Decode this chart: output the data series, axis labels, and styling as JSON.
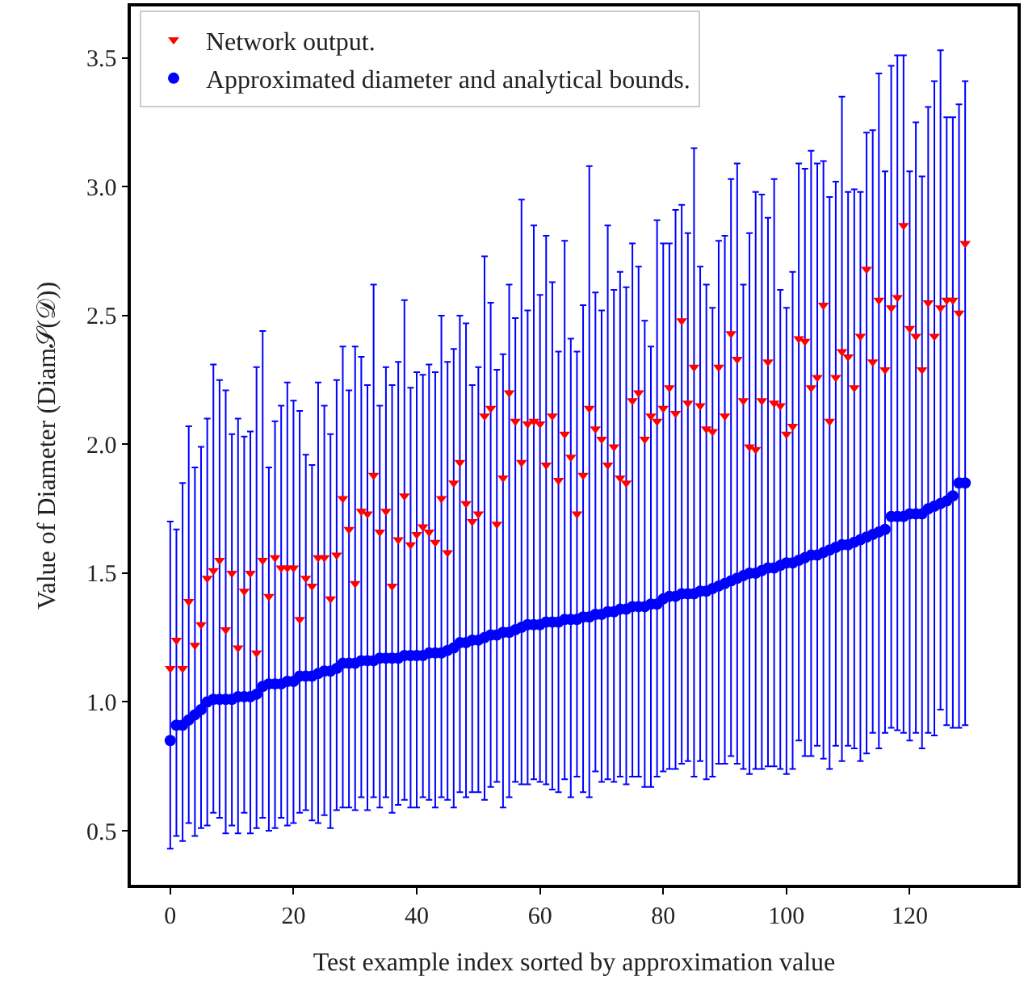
{
  "chart_data": {
    "type": "scatter",
    "xlabel": "Test example index sorted by approximation value",
    "ylabel": "Value of Diameter (Diam𝒮(𝒟))",
    "x": [
      0,
      1,
      2,
      3,
      4,
      5,
      6,
      7,
      8,
      9,
      10,
      11,
      12,
      13,
      14,
      15,
      16,
      17,
      18,
      19,
      20,
      21,
      22,
      23,
      24,
      25,
      26,
      27,
      28,
      29,
      30,
      31,
      32,
      33,
      34,
      35,
      36,
      37,
      38,
      39,
      40,
      41,
      42,
      43,
      44,
      45,
      46,
      47,
      48,
      49,
      50,
      51,
      52,
      53,
      54,
      55,
      56,
      57,
      58,
      59,
      60,
      61,
      62,
      63,
      64,
      65,
      66,
      67,
      68,
      69,
      70,
      71,
      72,
      73,
      74,
      75,
      76,
      77,
      78,
      79,
      80,
      81,
      82,
      83,
      84,
      85,
      86,
      87,
      88,
      89,
      90,
      91,
      92,
      93,
      94,
      95,
      96,
      97,
      98,
      99,
      100,
      101,
      102,
      103,
      104,
      105,
      106,
      107,
      108,
      109,
      110,
      111,
      112,
      113,
      114,
      115,
      116,
      117,
      118,
      119,
      120,
      121,
      122,
      123,
      124,
      125,
      126,
      127,
      128,
      129
    ],
    "series": [
      {
        "name": "Network output.",
        "color": "#ff0000",
        "marker": "triangle",
        "values": [
          1.13,
          1.24,
          1.13,
          1.39,
          1.22,
          1.3,
          1.48,
          1.51,
          1.55,
          1.28,
          1.5,
          1.21,
          1.43,
          1.5,
          1.19,
          1.55,
          1.41,
          1.56,
          1.52,
          1.52,
          1.52,
          1.32,
          1.48,
          1.45,
          1.56,
          1.56,
          1.4,
          1.57,
          1.79,
          1.67,
          1.46,
          1.74,
          1.73,
          1.88,
          1.66,
          1.74,
          1.45,
          1.63,
          1.8,
          1.61,
          1.65,
          1.68,
          1.66,
          1.62,
          1.79,
          1.58,
          1.85,
          1.93,
          1.77,
          1.7,
          1.73,
          2.11,
          2.14,
          1.69,
          1.87,
          2.2,
          2.09,
          1.93,
          2.08,
          2.09,
          2.08,
          1.92,
          2.11,
          1.86,
          2.04,
          1.95,
          1.73,
          1.88,
          2.14,
          2.06,
          2.02,
          1.92,
          1.99,
          1.87,
          1.85,
          2.17,
          2.2,
          2.02,
          2.11,
          2.09,
          2.14,
          2.22,
          2.12,
          2.48,
          2.16,
          2.3,
          2.15,
          2.06,
          2.05,
          2.3,
          2.11,
          2.43,
          2.33,
          2.17,
          1.99,
          1.98,
          2.17,
          2.32,
          2.16,
          2.15,
          2.04,
          2.07,
          2.41,
          2.4,
          2.22,
          2.26,
          2.54,
          2.09,
          2.26,
          2.36,
          2.34,
          2.22,
          2.42,
          2.68,
          2.32,
          2.56,
          2.29,
          2.53,
          2.57,
          2.85,
          2.45,
          2.42,
          2.29,
          2.55,
          2.42,
          2.53,
          2.56,
          2.56,
          2.51,
          2.78
        ]
      },
      {
        "name": "Approximated diameter and analytical bounds.",
        "color": "#0000ff",
        "marker": "circle",
        "values": [
          0.85,
          0.91,
          0.91,
          0.93,
          0.95,
          0.97,
          1.0,
          1.01,
          1.01,
          1.01,
          1.01,
          1.02,
          1.02,
          1.02,
          1.03,
          1.06,
          1.07,
          1.07,
          1.07,
          1.08,
          1.08,
          1.1,
          1.1,
          1.1,
          1.11,
          1.12,
          1.12,
          1.13,
          1.15,
          1.15,
          1.15,
          1.16,
          1.16,
          1.16,
          1.17,
          1.17,
          1.17,
          1.17,
          1.18,
          1.18,
          1.18,
          1.18,
          1.19,
          1.19,
          1.19,
          1.2,
          1.21,
          1.23,
          1.23,
          1.24,
          1.24,
          1.25,
          1.26,
          1.26,
          1.27,
          1.27,
          1.28,
          1.29,
          1.3,
          1.3,
          1.3,
          1.31,
          1.31,
          1.31,
          1.32,
          1.32,
          1.32,
          1.33,
          1.33,
          1.34,
          1.34,
          1.35,
          1.35,
          1.36,
          1.36,
          1.37,
          1.37,
          1.37,
          1.38,
          1.38,
          1.4,
          1.41,
          1.41,
          1.42,
          1.42,
          1.42,
          1.43,
          1.43,
          1.44,
          1.45,
          1.46,
          1.47,
          1.48,
          1.49,
          1.5,
          1.5,
          1.51,
          1.52,
          1.52,
          1.53,
          1.54,
          1.54,
          1.55,
          1.56,
          1.57,
          1.57,
          1.58,
          1.59,
          1.6,
          1.61,
          1.61,
          1.62,
          1.63,
          1.64,
          1.65,
          1.66,
          1.67,
          1.72,
          1.72,
          1.72,
          1.73,
          1.73,
          1.73,
          1.75,
          1.76,
          1.77,
          1.78,
          1.8,
          1.85,
          1.85
        ],
        "errors": [
          [
            0.43,
            1.7
          ],
          [
            0.48,
            1.67
          ],
          [
            0.46,
            1.85
          ],
          [
            0.53,
            2.07
          ],
          [
            0.48,
            1.91
          ],
          [
            0.51,
            1.99
          ],
          [
            0.52,
            2.1
          ],
          [
            0.57,
            2.31
          ],
          [
            0.55,
            2.25
          ],
          [
            0.49,
            2.21
          ],
          [
            0.52,
            2.04
          ],
          [
            0.49,
            2.1
          ],
          [
            0.57,
            2.03
          ],
          [
            0.49,
            2.05
          ],
          [
            0.51,
            2.3
          ],
          [
            0.55,
            2.44
          ],
          [
            0.5,
            1.91
          ],
          [
            0.51,
            2.09
          ],
          [
            0.55,
            2.15
          ],
          [
            0.52,
            2.24
          ],
          [
            0.53,
            2.17
          ],
          [
            0.57,
            2.13
          ],
          [
            0.58,
            1.96
          ],
          [
            0.54,
            1.92
          ],
          [
            0.53,
            2.24
          ],
          [
            0.56,
            2.15
          ],
          [
            0.51,
            2.04
          ],
          [
            0.58,
            2.25
          ],
          [
            0.59,
            2.38
          ],
          [
            0.59,
            2.21
          ],
          [
            0.58,
            2.38
          ],
          [
            0.63,
            2.34
          ],
          [
            0.58,
            2.23
          ],
          [
            0.63,
            2.62
          ],
          [
            0.59,
            2.15
          ],
          [
            0.63,
            2.3
          ],
          [
            0.57,
            2.23
          ],
          [
            0.6,
            2.32
          ],
          [
            0.62,
            2.56
          ],
          [
            0.59,
            2.22
          ],
          [
            0.59,
            2.28
          ],
          [
            0.63,
            2.27
          ],
          [
            0.62,
            2.31
          ],
          [
            0.59,
            2.28
          ],
          [
            0.63,
            2.5
          ],
          [
            0.62,
            2.32
          ],
          [
            0.59,
            2.37
          ],
          [
            0.65,
            2.5
          ],
          [
            0.63,
            2.47
          ],
          [
            0.65,
            2.23
          ],
          [
            0.65,
            2.3
          ],
          [
            0.62,
            2.73
          ],
          [
            0.67,
            2.55
          ],
          [
            0.69,
            2.29
          ],
          [
            0.59,
            2.35
          ],
          [
            0.63,
            2.62
          ],
          [
            0.69,
            2.49
          ],
          [
            0.68,
            2.95
          ],
          [
            0.68,
            2.52
          ],
          [
            0.7,
            2.85
          ],
          [
            0.69,
            2.58
          ],
          [
            0.68,
            2.81
          ],
          [
            0.66,
            2.63
          ],
          [
            0.65,
            2.36
          ],
          [
            0.7,
            2.79
          ],
          [
            0.63,
            2.41
          ],
          [
            0.71,
            2.36
          ],
          [
            0.65,
            2.54
          ],
          [
            0.63,
            3.08
          ],
          [
            0.73,
            2.59
          ],
          [
            0.69,
            2.52
          ],
          [
            0.7,
            2.85
          ],
          [
            0.69,
            2.6
          ],
          [
            0.71,
            2.67
          ],
          [
            0.68,
            2.61
          ],
          [
            0.71,
            2.78
          ],
          [
            0.71,
            2.69
          ],
          [
            0.67,
            2.48
          ],
          [
            0.67,
            2.38
          ],
          [
            0.71,
            2.87
          ],
          [
            0.73,
            2.78
          ],
          [
            0.74,
            2.78
          ],
          [
            0.74,
            2.91
          ],
          [
            0.76,
            2.93
          ],
          [
            0.77,
            2.82
          ],
          [
            0.71,
            3.15
          ],
          [
            0.77,
            2.69
          ],
          [
            0.7,
            2.62
          ],
          [
            0.71,
            2.53
          ],
          [
            0.76,
            2.79
          ],
          [
            0.76,
            2.81
          ],
          [
            0.79,
            3.03
          ],
          [
            0.76,
            3.09
          ],
          [
            0.74,
            2.62
          ],
          [
            0.72,
            2.82
          ],
          [
            0.74,
            2.98
          ],
          [
            0.74,
            2.97
          ],
          [
            0.75,
            2.88
          ],
          [
            0.75,
            3.03
          ],
          [
            0.74,
            2.6
          ],
          [
            0.72,
            2.53
          ],
          [
            0.74,
            2.67
          ],
          [
            0.85,
            3.09
          ],
          [
            0.79,
            3.07
          ],
          [
            0.79,
            3.14
          ],
          [
            0.83,
            3.09
          ],
          [
            0.78,
            3.1
          ],
          [
            0.74,
            2.96
          ],
          [
            0.83,
            3.02
          ],
          [
            0.77,
            3.35
          ],
          [
            0.83,
            2.98
          ],
          [
            0.82,
            2.99
          ],
          [
            0.77,
            2.98
          ],
          [
            0.8,
            3.21
          ],
          [
            0.88,
            3.22
          ],
          [
            0.82,
            3.44
          ],
          [
            0.88,
            3.06
          ],
          [
            0.9,
            3.47
          ],
          [
            0.89,
            3.51
          ],
          [
            0.88,
            3.51
          ],
          [
            0.85,
            3.06
          ],
          [
            0.88,
            3.25
          ],
          [
            0.82,
            3.04
          ],
          [
            0.88,
            3.31
          ],
          [
            0.87,
            3.41
          ],
          [
            0.97,
            3.53
          ],
          [
            0.91,
            3.27
          ],
          [
            0.9,
            3.27
          ],
          [
            0.9,
            3.32
          ],
          [
            0.91,
            3.41
          ]
        ]
      }
    ],
    "xlim": [
      -6.4,
      137.5
    ],
    "xticks": [
      0,
      20,
      40,
      60,
      80,
      100,
      120
    ],
    "ylim": [
      0.29,
      3.7
    ],
    "yticks": [
      0.5,
      {
        "value": 1.0,
        "label": "1.0"
      },
      1.5,
      {
        "value": 2.0,
        "label": "2.0"
      },
      2.5,
      {
        "value": 3.0,
        "label": "3.0"
      },
      3.5
    ],
    "legend": "top left"
  }
}
